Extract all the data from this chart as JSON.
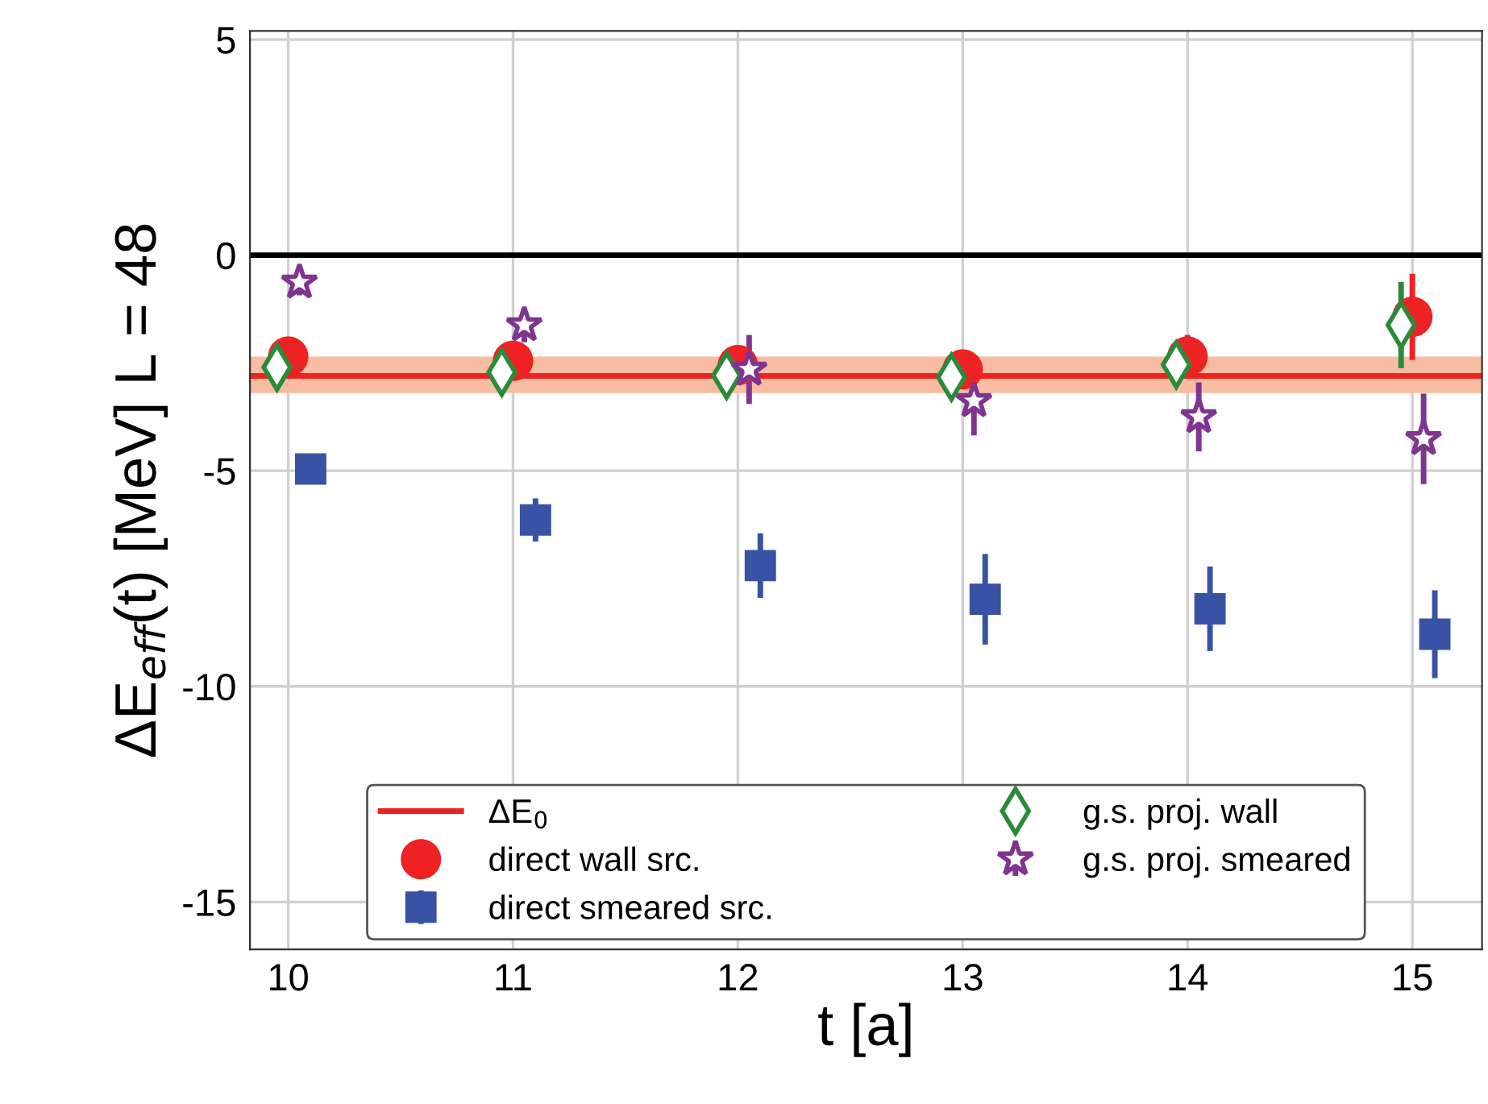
{
  "chart_data": {
    "type": "scatter",
    "xlabel": "t [a]",
    "ylabel": "ΔE$_{eff}$(t) [MeV] L = 48",
    "xlim": [
      9.83,
      15.31
    ],
    "ylim": [
      -16.1,
      5.2
    ],
    "xticks": [
      10,
      11,
      12,
      13,
      14,
      15
    ],
    "yticks": [
      -15,
      -10,
      -5,
      0,
      5
    ],
    "grid": true,
    "legend": "bottom",
    "ref_lines": [
      {
        "axis": "y",
        "value": 0,
        "color": "#000000"
      },
      {
        "axis": "y",
        "value": -2.8,
        "label": "ΔE$_{0}$",
        "color": "#ee2222"
      }
    ],
    "bands": [
      {
        "axis": "y",
        "from": -3.2,
        "to": -2.35,
        "color": "#f8bca0"
      }
    ],
    "series": [
      {
        "name": "direct wall src.",
        "color": "#ee2222",
        "marker": "circle",
        "x": [
          10.0,
          11.0,
          12.0,
          13.0,
          14.0,
          15.0
        ],
        "values": [
          -2.35,
          -2.45,
          -2.55,
          -2.65,
          -2.35,
          -1.43
        ],
        "errors": [
          0.3,
          0.3,
          0.3,
          0.3,
          0.5,
          1.0
        ]
      },
      {
        "name": "direct smeared src.",
        "color": "#3853a4",
        "marker": "square",
        "x": [
          10.1,
          11.1,
          12.1,
          13.1,
          14.1,
          15.1
        ],
        "values": [
          -4.96,
          -6.14,
          -7.2,
          -7.98,
          -8.2,
          -8.79
        ],
        "errors": [
          0.3,
          0.5,
          0.75,
          1.05,
          0.98,
          1.02
        ]
      },
      {
        "name": "g.s. proj. wall",
        "color": "#2a8a3a",
        "marker": "diamond",
        "x": [
          9.95,
          10.95,
          11.95,
          12.95,
          13.95,
          14.95
        ],
        "values": [
          -2.6,
          -2.72,
          -2.79,
          -2.83,
          -2.54,
          -1.62
        ],
        "errors": [
          0.3,
          0.3,
          0.3,
          0.3,
          0.4,
          1.0
        ]
      },
      {
        "name": "g.s. proj. smeared",
        "color": "#7f3590",
        "marker": "star",
        "x": [
          10.05,
          11.05,
          12.05,
          13.05,
          14.05,
          15.05
        ],
        "values": [
          -0.63,
          -1.62,
          -2.65,
          -3.38,
          -3.75,
          -4.26
        ],
        "errors": [
          0.3,
          0.4,
          0.8,
          0.8,
          0.8,
          1.05
        ]
      }
    ]
  }
}
